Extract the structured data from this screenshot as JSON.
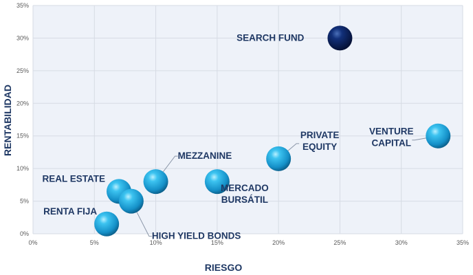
{
  "chart_data": {
    "type": "scatter",
    "title": "",
    "xlabel": "RIESGO",
    "ylabel": "RENTABILIDAD",
    "xlim": [
      0,
      35
    ],
    "ylim": [
      0,
      35
    ],
    "x_ticks": [
      "0%",
      "5%",
      "10%",
      "15%",
      "20%",
      "25%",
      "30%",
      "35%"
    ],
    "y_ticks": [
      "0%",
      "5%",
      "10%",
      "15%",
      "20%",
      "25%",
      "30%",
      "35%"
    ],
    "grid": true,
    "points": [
      {
        "label": [
          "SEARCH FUND"
        ],
        "x": 25,
        "y": 30,
        "color": "#0a2a66"
      },
      {
        "label": [
          "VENTURE",
          "CAPITAL"
        ],
        "x": 33,
        "y": 15,
        "color": "#1ba8e0"
      },
      {
        "label": [
          "PRIVATE",
          "EQUITY"
        ],
        "x": 20,
        "y": 11.5,
        "color": "#1ba8e0"
      },
      {
        "label": [
          "MEZZANINE"
        ],
        "x": 10,
        "y": 8,
        "color": "#1ba8e0"
      },
      {
        "label": [
          "MERCADO",
          "BURSÁTIL"
        ],
        "x": 15,
        "y": 8,
        "color": "#1ba8e0"
      },
      {
        "label": [
          "REAL ESTATE"
        ],
        "x": 7,
        "y": 6.5,
        "color": "#1ba8e0"
      },
      {
        "label": [
          "HIGH YIELD BONDS"
        ],
        "x": 8,
        "y": 5,
        "color": "#1ba8e0"
      },
      {
        "label": [
          "RENTA FIJA"
        ],
        "x": 6,
        "y": 1.5,
        "color": "#1ba8e0"
      }
    ]
  }
}
